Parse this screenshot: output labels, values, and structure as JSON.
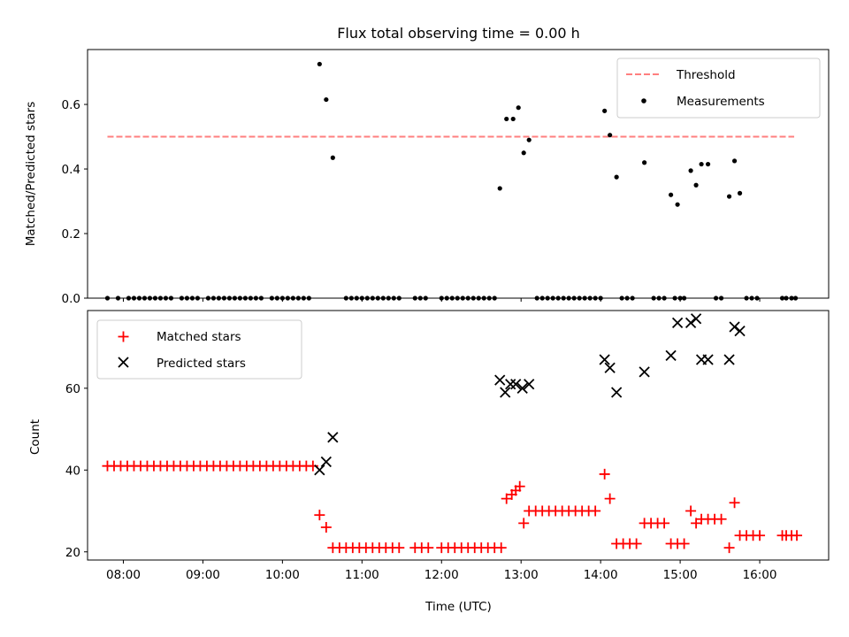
{
  "chart_data": [
    {
      "type": "scatter",
      "title": "Flux total observing time = 0.00 h",
      "ylabel": "Matched/Predicted stars",
      "xlabel": "",
      "xlim": [
        "07:33",
        "16:52"
      ],
      "ylim": [
        0,
        0.77
      ],
      "yticks": [
        0.0,
        0.2,
        0.4,
        0.6
      ],
      "ytick_labels": [
        "0.0",
        "0.2",
        "0.4",
        "0.6"
      ],
      "grid": false,
      "legend_position": "top-right",
      "series": [
        {
          "name": "Threshold",
          "kind": "line",
          "style": "dashed",
          "color": "#ff7f7f",
          "x": [
            "07:48",
            "16:26"
          ],
          "y": [
            0.5,
            0.5
          ]
        },
        {
          "name": "Measurements",
          "kind": "scatter",
          "marker": "dot",
          "color": "#000000",
          "points": [
            [
              "07:48",
              0
            ],
            [
              "07:56",
              0
            ],
            [
              "08:04",
              0
            ],
            [
              "08:08",
              0
            ],
            [
              "08:12",
              0
            ],
            [
              "08:16",
              0
            ],
            [
              "08:20",
              0
            ],
            [
              "08:24",
              0
            ],
            [
              "08:28",
              0
            ],
            [
              "08:32",
              0
            ],
            [
              "08:36",
              0
            ],
            [
              "08:44",
              0
            ],
            [
              "08:48",
              0
            ],
            [
              "08:52",
              0
            ],
            [
              "08:56",
              0
            ],
            [
              "09:04",
              0
            ],
            [
              "09:08",
              0
            ],
            [
              "09:12",
              0
            ],
            [
              "09:16",
              0
            ],
            [
              "09:20",
              0
            ],
            [
              "09:24",
              0
            ],
            [
              "09:28",
              0
            ],
            [
              "09:32",
              0
            ],
            [
              "09:36",
              0
            ],
            [
              "09:40",
              0
            ],
            [
              "09:44",
              0
            ],
            [
              "09:52",
              0
            ],
            [
              "09:56",
              0
            ],
            [
              "10:00",
              0
            ],
            [
              "10:04",
              0
            ],
            [
              "10:08",
              0
            ],
            [
              "10:12",
              0
            ],
            [
              "10:16",
              0
            ],
            [
              "10:20",
              0
            ],
            [
              "10:28",
              0.725
            ],
            [
              "10:33",
              0.615
            ],
            [
              "10:38",
              0.435
            ],
            [
              "10:48",
              0
            ],
            [
              "10:52",
              0
            ],
            [
              "10:56",
              0
            ],
            [
              "11:00",
              0
            ],
            [
              "11:04",
              0
            ],
            [
              "11:08",
              0
            ],
            [
              "11:12",
              0
            ],
            [
              "11:16",
              0
            ],
            [
              "11:20",
              0
            ],
            [
              "11:24",
              0
            ],
            [
              "11:28",
              0
            ],
            [
              "11:40",
              0
            ],
            [
              "11:44",
              0
            ],
            [
              "11:48",
              0
            ],
            [
              "12:00",
              0
            ],
            [
              "12:04",
              0
            ],
            [
              "12:08",
              0
            ],
            [
              "12:12",
              0
            ],
            [
              "12:16",
              0
            ],
            [
              "12:20",
              0
            ],
            [
              "12:24",
              0
            ],
            [
              "12:28",
              0
            ],
            [
              "12:32",
              0
            ],
            [
              "12:36",
              0
            ],
            [
              "12:40",
              0
            ],
            [
              "12:44",
              0.34
            ],
            [
              "12:49",
              0.555
            ],
            [
              "12:54",
              0.555
            ],
            [
              "12:58",
              0.59
            ],
            [
              "13:02",
              0.45
            ],
            [
              "13:06",
              0.49
            ],
            [
              "13:12",
              0
            ],
            [
              "13:16",
              0
            ],
            [
              "13:20",
              0
            ],
            [
              "13:24",
              0
            ],
            [
              "13:28",
              0
            ],
            [
              "13:32",
              0
            ],
            [
              "13:36",
              0
            ],
            [
              "13:40",
              0
            ],
            [
              "13:44",
              0
            ],
            [
              "13:48",
              0
            ],
            [
              "13:52",
              0
            ],
            [
              "13:56",
              0
            ],
            [
              "14:00",
              0
            ],
            [
              "14:03",
              0.58
            ],
            [
              "14:07",
              0.505
            ],
            [
              "14:12",
              0.375
            ],
            [
              "14:16",
              0
            ],
            [
              "14:20",
              0
            ],
            [
              "14:24",
              0
            ],
            [
              "14:33",
              0.42
            ],
            [
              "14:40",
              0
            ],
            [
              "14:44",
              0
            ],
            [
              "14:48",
              0
            ],
            [
              "14:56",
              0
            ],
            [
              "15:00",
              0
            ],
            [
              "14:53",
              0.32
            ],
            [
              "14:58",
              0.29
            ],
            [
              "15:03",
              0
            ],
            [
              "15:08",
              0.395
            ],
            [
              "15:12",
              0.35
            ],
            [
              "15:16",
              0.415
            ],
            [
              "15:21",
              0.415
            ],
            [
              "15:27",
              0
            ],
            [
              "15:31",
              0
            ],
            [
              "15:37",
              0.315
            ],
            [
              "15:41",
              0.425
            ],
            [
              "15:45",
              0.325
            ],
            [
              "15:50",
              0
            ],
            [
              "15:54",
              0
            ],
            [
              "15:58",
              0
            ],
            [
              "16:17",
              0
            ],
            [
              "16:20",
              0
            ],
            [
              "16:24",
              0
            ],
            [
              "16:27",
              0
            ]
          ]
        }
      ]
    },
    {
      "type": "scatter",
      "title": "",
      "ylabel": "Count",
      "xlabel": "Time (UTC)",
      "xlim": [
        "07:33",
        "16:52"
      ],
      "ylim": [
        18,
        79
      ],
      "yticks": [
        20,
        40,
        60
      ],
      "ytick_labels": [
        "20",
        "40",
        "60"
      ],
      "xticks": [
        "08:00",
        "09:00",
        "10:00",
        "11:00",
        "12:00",
        "13:00",
        "14:00",
        "15:00",
        "16:00"
      ],
      "grid": false,
      "legend_position": "top-left",
      "series": [
        {
          "name": "Matched stars",
          "kind": "scatter",
          "marker": "plus",
          "color": "#ff0000",
          "points": [
            [
              "07:48",
              41
            ],
            [
              "07:53",
              41
            ],
            [
              "07:58",
              41
            ],
            [
              "08:03",
              41
            ],
            [
              "08:08",
              41
            ],
            [
              "08:13",
              41
            ],
            [
              "08:18",
              41
            ],
            [
              "08:23",
              41
            ],
            [
              "08:28",
              41
            ],
            [
              "08:33",
              41
            ],
            [
              "08:38",
              41
            ],
            [
              "08:43",
              41
            ],
            [
              "08:48",
              41
            ],
            [
              "08:53",
              41
            ],
            [
              "08:58",
              41
            ],
            [
              "09:03",
              41
            ],
            [
              "09:08",
              41
            ],
            [
              "09:13",
              41
            ],
            [
              "09:18",
              41
            ],
            [
              "09:23",
              41
            ],
            [
              "09:28",
              41
            ],
            [
              "09:33",
              41
            ],
            [
              "09:38",
              41
            ],
            [
              "09:43",
              41
            ],
            [
              "09:48",
              41
            ],
            [
              "09:53",
              41
            ],
            [
              "09:58",
              41
            ],
            [
              "10:03",
              41
            ],
            [
              "10:08",
              41
            ],
            [
              "10:13",
              41
            ],
            [
              "10:18",
              41
            ],
            [
              "10:23",
              41
            ],
            [
              "10:28",
              29
            ],
            [
              "10:33",
              26
            ],
            [
              "10:38",
              21
            ],
            [
              "10:43",
              21
            ],
            [
              "10:48",
              21
            ],
            [
              "10:53",
              21
            ],
            [
              "10:58",
              21
            ],
            [
              "11:03",
              21
            ],
            [
              "11:08",
              21
            ],
            [
              "11:13",
              21
            ],
            [
              "11:18",
              21
            ],
            [
              "11:23",
              21
            ],
            [
              "11:28",
              21
            ],
            [
              "11:40",
              21
            ],
            [
              "11:45",
              21
            ],
            [
              "11:50",
              21
            ],
            [
              "12:00",
              21
            ],
            [
              "12:05",
              21
            ],
            [
              "12:10",
              21
            ],
            [
              "12:15",
              21
            ],
            [
              "12:20",
              21
            ],
            [
              "12:25",
              21
            ],
            [
              "12:30",
              21
            ],
            [
              "12:35",
              21
            ],
            [
              "12:40",
              21
            ],
            [
              "12:45",
              21
            ],
            [
              "12:49",
              33
            ],
            [
              "12:53",
              34
            ],
            [
              "12:56",
              35
            ],
            [
              "12:59",
              36
            ],
            [
              "13:02",
              27
            ],
            [
              "13:06",
              30
            ],
            [
              "13:11",
              30
            ],
            [
              "13:16",
              30
            ],
            [
              "13:21",
              30
            ],
            [
              "13:26",
              30
            ],
            [
              "13:31",
              30
            ],
            [
              "13:36",
              30
            ],
            [
              "13:41",
              30
            ],
            [
              "13:46",
              30
            ],
            [
              "13:51",
              30
            ],
            [
              "13:56",
              30
            ],
            [
              "14:03",
              39
            ],
            [
              "14:07",
              33
            ],
            [
              "14:12",
              22
            ],
            [
              "14:17",
              22
            ],
            [
              "14:22",
              22
            ],
            [
              "14:27",
              22
            ],
            [
              "14:33",
              27
            ],
            [
              "14:38",
              27
            ],
            [
              "14:43",
              27
            ],
            [
              "14:48",
              27
            ],
            [
              "14:53",
              22
            ],
            [
              "14:58",
              22
            ],
            [
              "15:03",
              22
            ],
            [
              "15:08",
              30
            ],
            [
              "15:12",
              27
            ],
            [
              "15:16",
              28
            ],
            [
              "15:21",
              28
            ],
            [
              "15:26",
              28
            ],
            [
              "15:31",
              28
            ],
            [
              "15:37",
              21
            ],
            [
              "15:41",
              32
            ],
            [
              "15:45",
              24
            ],
            [
              "15:50",
              24
            ],
            [
              "15:55",
              24
            ],
            [
              "16:00",
              24
            ],
            [
              "16:17",
              24
            ],
            [
              "16:20",
              24
            ],
            [
              "16:24",
              24
            ],
            [
              "16:28",
              24
            ]
          ]
        },
        {
          "name": "Predicted stars",
          "kind": "scatter",
          "marker": "x",
          "color": "#000000",
          "points": [
            [
              "10:28",
              40
            ],
            [
              "10:33",
              42
            ],
            [
              "10:38",
              48
            ],
            [
              "12:44",
              62
            ],
            [
              "12:48",
              59
            ],
            [
              "12:52",
              61
            ],
            [
              "12:56",
              61
            ],
            [
              "13:01",
              60
            ],
            [
              "13:06",
              61
            ],
            [
              "14:03",
              67
            ],
            [
              "14:07",
              65
            ],
            [
              "14:12",
              59
            ],
            [
              "14:33",
              64
            ],
            [
              "14:53",
              68
            ],
            [
              "14:58",
              76
            ],
            [
              "15:08",
              76
            ],
            [
              "15:12",
              77
            ],
            [
              "15:16",
              67
            ],
            [
              "15:21",
              67
            ],
            [
              "15:37",
              67
            ],
            [
              "15:41",
              75
            ],
            [
              "15:45",
              74
            ]
          ]
        }
      ]
    }
  ]
}
